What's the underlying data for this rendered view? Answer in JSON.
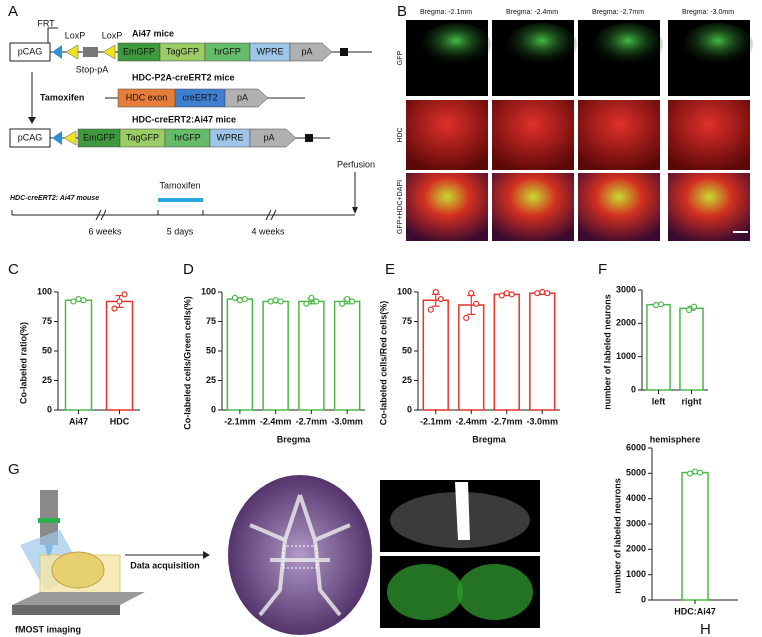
{
  "panel_a": {
    "label": "A",
    "construct1": {
      "promoter": "pCAG",
      "frt": "FRT",
      "loxp1": "LoxP",
      "loxp2": "LoxP",
      "title": "Ai47 mice",
      "stop": "Stop-pA",
      "genes": [
        "EmGFP",
        "TagGFP",
        "hrGFP",
        "WPRE",
        "pA"
      ]
    },
    "tamoxifen": "Tamoxifen",
    "construct2": {
      "title": "HDC-P2A-creERT2 mice",
      "genes": [
        "HDC exon",
        "creERT2",
        "pA"
      ]
    },
    "construct3": {
      "title": "HDC-creERT2:Ai47 mice",
      "promoter": "pCAG",
      "genes": [
        "EmGFP",
        "TagGFP",
        "hrGFP",
        "WPRE",
        "pA"
      ]
    },
    "timeline": {
      "mouse": "HDC-creERT2: Ai47 mouse",
      "treatment": "Tamoxifen",
      "endpoint": "Perfusion",
      "periods": [
        "6 weeks",
        "5 days",
        "4 weeks"
      ]
    }
  },
  "panel_b": {
    "label": "B",
    "columns": [
      "Bregma: -2.1mm",
      "Bregma: -2.4mm",
      "Bregma: -2.7mm",
      "Bregma: -3.0mm"
    ],
    "rows": [
      "GFP",
      "HDC",
      "GFP+HDC+DAPI"
    ]
  },
  "chart_data": [
    {
      "type": "bar",
      "panel": "C",
      "ylabel": "Co-labeled ratio(%)",
      "categories": [
        "Ai47",
        "HDC"
      ],
      "values": [
        93,
        92
      ],
      "errors": [
        1,
        5
      ],
      "points": [
        [
          92,
          94,
          93
        ],
        [
          86,
          92,
          98
        ]
      ],
      "colors": [
        "#4cb848",
        "#e5332a"
      ],
      "ylim": [
        0,
        100
      ],
      "yticks": [
        0,
        25,
        50,
        75,
        100
      ]
    },
    {
      "type": "bar",
      "panel": "D",
      "ylabel": "Co-labeled cells/Green cells(%)",
      "xlabel": "Bregma",
      "categories": [
        "-2.1mm",
        "-2.4mm",
        "-2.7mm",
        "-3.0mm"
      ],
      "values": [
        94,
        92,
        92,
        92
      ],
      "errors": [
        1,
        1,
        2,
        2
      ],
      "points": [
        [
          95,
          93,
          94
        ],
        [
          92,
          93,
          92
        ],
        [
          90,
          95,
          92
        ],
        [
          90,
          94,
          92
        ]
      ],
      "color": "#4cb848",
      "ylim": [
        0,
        100
      ],
      "yticks": [
        0,
        25,
        50,
        75,
        100
      ]
    },
    {
      "type": "bar",
      "panel": "E",
      "ylabel": "Co-labeled cells/Red cells(%)",
      "xlabel": "Bregma",
      "categories": [
        "-2.1mm",
        "-2.4mm",
        "-2.7mm",
        "-3.0mm"
      ],
      "values": [
        93,
        89,
        98,
        99
      ],
      "errors": [
        5,
        8,
        1,
        1
      ],
      "points": [
        [
          85,
          100,
          94
        ],
        [
          78,
          99,
          90
        ],
        [
          97,
          99,
          98
        ],
        [
          99,
          100,
          99
        ]
      ],
      "color": "#e5332a",
      "ylim": [
        0,
        100
      ],
      "yticks": [
        0,
        25,
        50,
        75,
        100
      ]
    },
    {
      "type": "bar",
      "panel": "F",
      "ylabel": "number of labeled neurons",
      "xlabel": "hemisphere",
      "categories": [
        "left",
        "right"
      ],
      "values": [
        2560,
        2450
      ],
      "errors": [
        20,
        60
      ],
      "points": [
        [
          2550,
          2570
        ],
        [
          2400,
          2500
        ]
      ],
      "color": "#4cb848",
      "ylim": [
        0,
        3000
      ],
      "yticks": [
        0,
        1000,
        2000,
        3000
      ]
    },
    {
      "type": "bar",
      "panel": "H",
      "ylabel": "number of labeled neurons",
      "categories": [
        "HDC:Ai47"
      ],
      "values": [
        5030
      ],
      "errors": [
        40
      ],
      "points": [
        [
          4990,
          5070,
          5030
        ]
      ],
      "color": "#4cb848",
      "ylim": [
        0,
        6000
      ],
      "yticks": [
        0,
        1000,
        2000,
        3000,
        4000,
        5000,
        6000
      ]
    }
  ],
  "panel_g": {
    "label": "G",
    "steps": [
      "fMOST imaging",
      "Data acquisition"
    ]
  }
}
